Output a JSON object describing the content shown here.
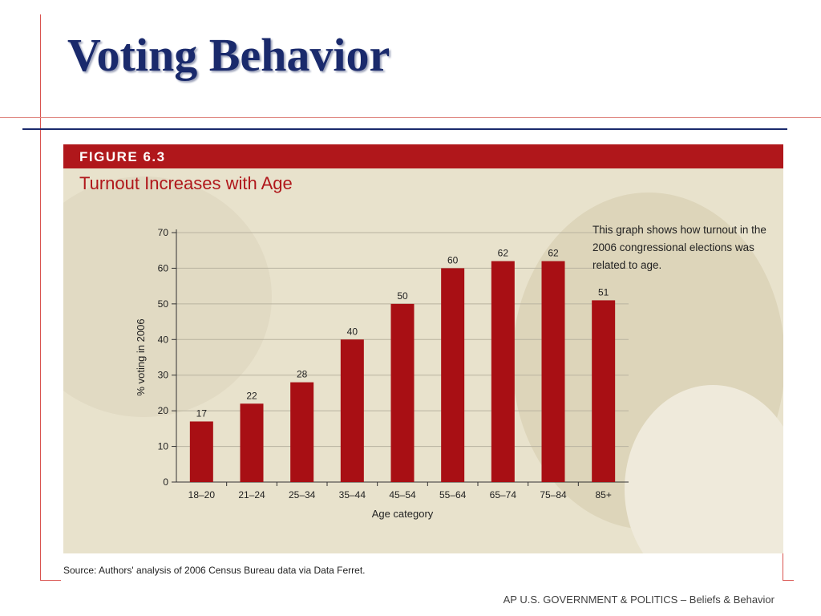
{
  "slide": {
    "title": "Voting Behavior",
    "footer": "AP U.S. GOVERNMENT & POLITICS – Beliefs & Behavior"
  },
  "figure": {
    "label": "FIGURE 6.3",
    "caption": "This graph shows how turnout in the 2006 congressional elections was related to age.",
    "source": "Source: Authors' analysis of 2006 Census Bureau data via Data Ferret."
  },
  "colors": {
    "bar": "#a80f14",
    "band": "#b0171b",
    "title": "#1a2a6c",
    "panel": "#e8e2cc"
  },
  "chart_data": {
    "type": "bar",
    "title": "Turnout Increases with Age",
    "xlabel": "Age category",
    "ylabel": "% voting in 2006",
    "categories": [
      "18–20",
      "21–24",
      "25–34",
      "35–44",
      "45–54",
      "55–64",
      "65–74",
      "75–84",
      "85+"
    ],
    "values": [
      17,
      22,
      28,
      40,
      50,
      60,
      62,
      62,
      51
    ],
    "ylim": [
      0,
      70
    ],
    "yticks": [
      0,
      10,
      20,
      30,
      40,
      50,
      60,
      70
    ],
    "grid": true,
    "data_labels": true
  }
}
